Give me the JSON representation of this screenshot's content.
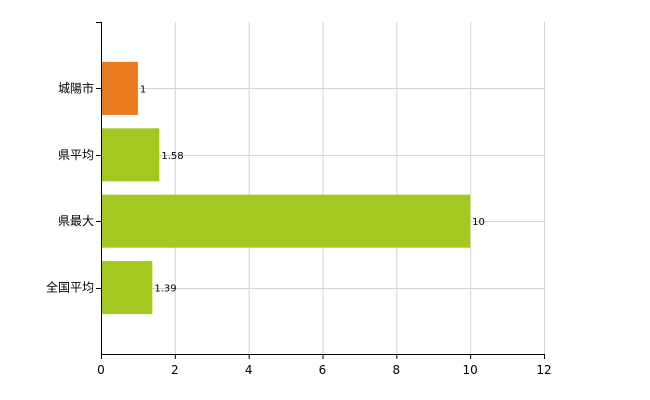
{
  "chart_data": {
    "type": "bar",
    "orientation": "horizontal",
    "categories": [
      "城陽市",
      "県平均",
      "県最大",
      "全国平均"
    ],
    "values": [
      1,
      1.58,
      10,
      1.39
    ],
    "data_labels": [
      "1",
      "1.58",
      "10",
      "1.39"
    ],
    "bar_colors": [
      "#e87b20",
      "#a3c81f",
      "#a3c81f",
      "#a3c81f"
    ],
    "xlim": [
      0,
      12
    ],
    "x_ticks": [
      0,
      2,
      4,
      6,
      8,
      10,
      12
    ],
    "x_tick_labels": [
      "0",
      "2",
      "4",
      "6",
      "8",
      "10",
      "12"
    ],
    "grid": true,
    "grid_color": "#d3d3d3",
    "title": "",
    "xlabel": "",
    "ylabel": ""
  }
}
